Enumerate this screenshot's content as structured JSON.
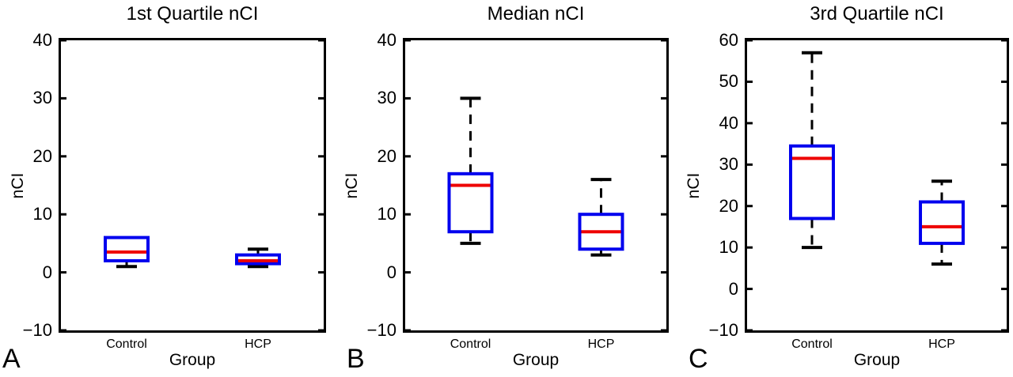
{
  "figure": {
    "background": "#ffffff",
    "colors": {
      "box": "#0000ee",
      "median": "#ee0000",
      "whisker": "#000000",
      "axis": "#000000"
    }
  },
  "chart_data": [
    {
      "type": "boxplot",
      "panel_letter": "A",
      "title": "1st Quartile nCI",
      "xlabel": "Group",
      "ylabel": "nCI",
      "categories": [
        "Control",
        "HCP"
      ],
      "ylim": [
        -10,
        40
      ],
      "yticks": [
        -10,
        0,
        10,
        20,
        30,
        40
      ],
      "grid": false,
      "series": [
        {
          "name": "Control",
          "whisker_low": 1,
          "q1": 2,
          "median": 3.5,
          "q3": 6,
          "whisker_high": 6
        },
        {
          "name": "HCP",
          "whisker_low": 1,
          "q1": 1.5,
          "median": 2,
          "q3": 3,
          "whisker_high": 4
        }
      ]
    },
    {
      "type": "boxplot",
      "panel_letter": "B",
      "title": "Median nCI",
      "xlabel": "Group",
      "ylabel": "nCI",
      "categories": [
        "Control",
        "HCP"
      ],
      "ylim": [
        -10,
        40
      ],
      "yticks": [
        -10,
        0,
        10,
        20,
        30,
        40
      ],
      "grid": false,
      "series": [
        {
          "name": "Control",
          "whisker_low": 5,
          "q1": 7,
          "median": 15,
          "q3": 17,
          "whisker_high": 30
        },
        {
          "name": "HCP",
          "whisker_low": 3,
          "q1": 4,
          "median": 7,
          "q3": 10,
          "whisker_high": 16
        }
      ]
    },
    {
      "type": "boxplot",
      "panel_letter": "C",
      "title": "3rd Quartile nCI",
      "xlabel": "Group",
      "ylabel": "nCI",
      "categories": [
        "Control",
        "HCP"
      ],
      "ylim": [
        -10,
        60
      ],
      "yticks": [
        -10,
        0,
        10,
        20,
        30,
        40,
        50,
        60
      ],
      "grid": false,
      "series": [
        {
          "name": "Control",
          "whisker_low": 10,
          "q1": 17,
          "median": 31.5,
          "q3": 34.5,
          "whisker_high": 57
        },
        {
          "name": "HCP",
          "whisker_low": 6,
          "q1": 11,
          "median": 15,
          "q3": 21,
          "whisker_high": 26
        }
      ]
    }
  ]
}
